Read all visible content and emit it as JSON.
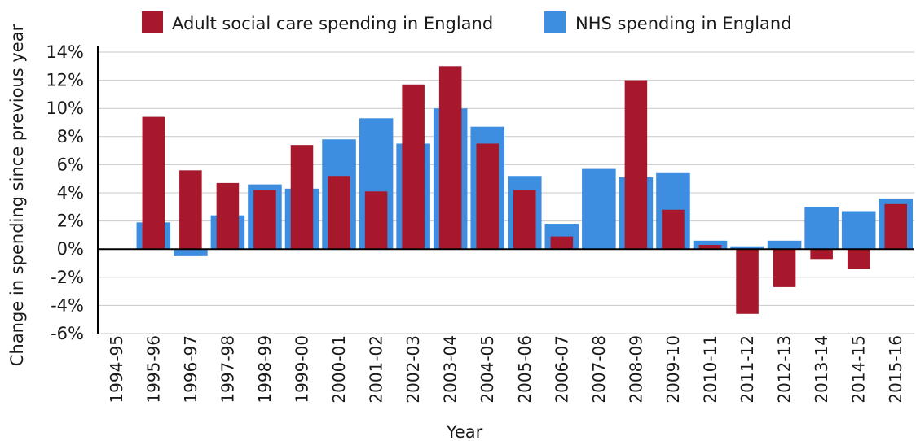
{
  "chart_data": {
    "type": "bar",
    "title": "",
    "xlabel": "Year",
    "ylabel": "Change in spending since previous year",
    "ylim": [
      -6,
      14
    ],
    "y_ticks": [
      "14%",
      "12%",
      "10%",
      "8%",
      "6%",
      "4%",
      "2%",
      "0%",
      "-2%",
      "-4%",
      "-6%"
    ],
    "y_tick_values": [
      14,
      12,
      10,
      8,
      6,
      4,
      2,
      0,
      -2,
      -4,
      -6
    ],
    "grid": true,
    "legend_position": "top",
    "categories": [
      "1994-95",
      "1995-96",
      "1996-97",
      "1997-98",
      "1998-99",
      "1999-00",
      "2000-01",
      "2001-02",
      "2002-03",
      "2003-04",
      "2004-05",
      "2005-06",
      "2006-07",
      "2007-08",
      "2008-09",
      "2009-10",
      "2010-11",
      "2011-12",
      "2012-13",
      "2013-14",
      "2014-15",
      "2015-16"
    ],
    "series": [
      {
        "name": "NHS spending in England",
        "color": "#3d8ee0",
        "values": [
          null,
          1.9,
          -0.5,
          2.4,
          4.6,
          4.3,
          7.8,
          9.3,
          7.5,
          10.0,
          8.7,
          5.2,
          1.8,
          5.7,
          5.1,
          5.4,
          0.6,
          0.2,
          0.6,
          3.0,
          2.7,
          3.6
        ]
      },
      {
        "name": "Adult social care spending in England",
        "color": "#a8182c",
        "values": [
          null,
          9.4,
          5.6,
          4.7,
          4.2,
          7.4,
          5.2,
          4.1,
          11.7,
          13.0,
          7.5,
          4.2,
          0.9,
          null,
          12.0,
          2.8,
          0.3,
          -4.6,
          -2.7,
          -0.7,
          -1.4,
          3.2
        ]
      }
    ],
    "legend": [
      {
        "label": "Adult social care spending in England",
        "color": "#a8182c"
      },
      {
        "label": "NHS spending in England",
        "color": "#3d8ee0"
      }
    ]
  }
}
